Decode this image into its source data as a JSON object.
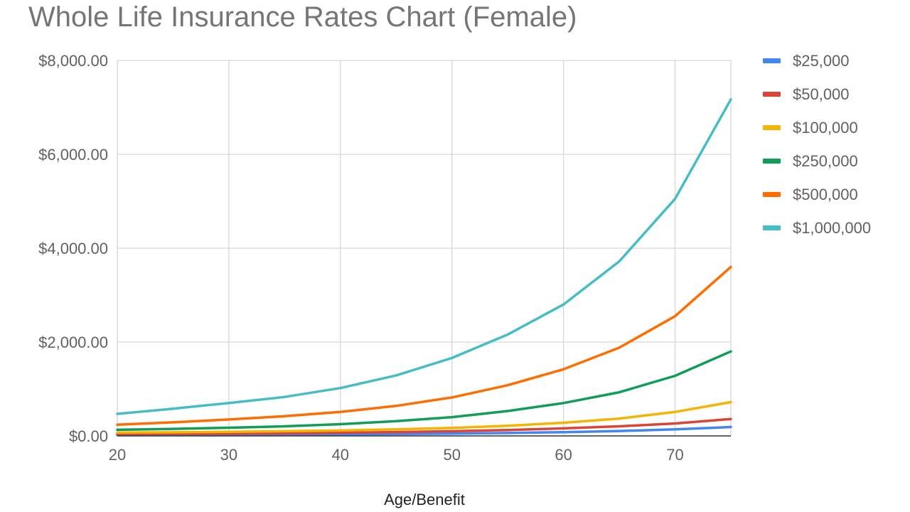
{
  "chart_data": {
    "type": "line",
    "title": "Whole Life Insurance Rates Chart (Female)",
    "xlabel": "Age/Benefit",
    "ylabel": "",
    "x": [
      20,
      25,
      30,
      35,
      40,
      45,
      50,
      55,
      60,
      65,
      70,
      75
    ],
    "xlim": [
      20,
      75
    ],
    "xticks": [
      20,
      30,
      40,
      50,
      60,
      70
    ],
    "ylim": [
      0,
      8000
    ],
    "yticks": [
      0,
      2000,
      4000,
      6000,
      8000
    ],
    "ytick_labels": [
      "$0.00",
      "$2,000.00",
      "$4,000.00",
      "$6,000.00",
      "$8,000.00"
    ],
    "grid": true,
    "legend_position": "right",
    "series": [
      {
        "name": "$25,000",
        "color": "#4285f4",
        "values": [
          20,
          22,
          25,
          28,
          33,
          40,
          50,
          62,
          80,
          105,
          140,
          190
        ]
      },
      {
        "name": "$50,000",
        "color": "#db4437",
        "values": [
          40,
          45,
          50,
          58,
          68,
          82,
          100,
          125,
          160,
          205,
          265,
          360
        ]
      },
      {
        "name": "$100,000",
        "color": "#f4b400",
        "values": [
          70,
          78,
          88,
          100,
          115,
          140,
          170,
          215,
          280,
          370,
          510,
          720
        ]
      },
      {
        "name": "$250,000",
        "color": "#0f9d58",
        "values": [
          130,
          150,
          175,
          205,
          250,
          315,
          400,
          530,
          700,
          930,
          1280,
          1800
        ]
      },
      {
        "name": "$500,000",
        "color": "#ff6d00",
        "values": [
          240,
          290,
          350,
          420,
          510,
          640,
          820,
          1080,
          1420,
          1880,
          2550,
          3600
        ]
      },
      {
        "name": "$1,000,000",
        "color": "#46bdc6",
        "values": [
          470,
          580,
          700,
          830,
          1020,
          1290,
          1660,
          2160,
          2800,
          3720,
          5050,
          7170
        ]
      }
    ]
  }
}
